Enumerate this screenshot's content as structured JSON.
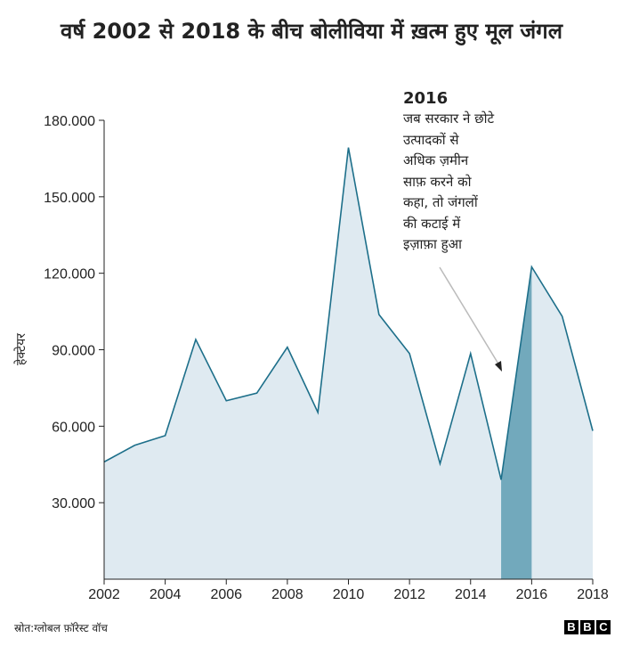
{
  "title": "वर्ष 2002 से 2018 के बीच बोलीविया में ख़त्म हुए मूल जंगल",
  "source": "स्रोत:ग्लोबल फ़ॉरेस्ट वॉच",
  "logo": "BBC",
  "annotation": {
    "year": "2016",
    "lines": [
      "जब सरकार ने छोटे",
      "उत्पादकों से",
      "अधिक ज़मीन",
      "साफ़ करने को",
      "कहा, तो जंगलों",
      "की कटाई में",
      "इज़ाफ़ा हुआ"
    ]
  },
  "chart_data": {
    "type": "area",
    "title": "वर्ष 2002 से 2018 के बीच बोलीविया में ख़त्म हुए मूल जंगल",
    "xlabel": "",
    "ylabel": "हेक्टेयर",
    "x": [
      2002,
      2003,
      2004,
      2005,
      2006,
      2007,
      2008,
      2009,
      2010,
      2011,
      2012,
      2013,
      2014,
      2015,
      2016,
      2017,
      2018
    ],
    "values": [
      46000,
      52500,
      56300,
      94000,
      70000,
      73000,
      91000,
      65400,
      169300,
      103800,
      88500,
      45300,
      88500,
      39000,
      122500,
      103100,
      58200
    ],
    "xlim": [
      2002,
      2018
    ],
    "ylim": [
      0,
      180000
    ],
    "xticks": [
      "2002",
      "2004",
      "2006",
      "2008",
      "2010",
      "2012",
      "2014",
      "2016",
      "2018"
    ],
    "yticks": [
      "30.000",
      "60.000",
      "90.000",
      "120.000",
      "150.000",
      "180.000"
    ],
    "highlight": [
      2015,
      2016
    ],
    "grid": false,
    "colors": {
      "line": "#1d6f8a",
      "fill": "#dfeaf1",
      "highlight": "#72a9bc",
      "arrow": "#bbbbbb"
    }
  }
}
